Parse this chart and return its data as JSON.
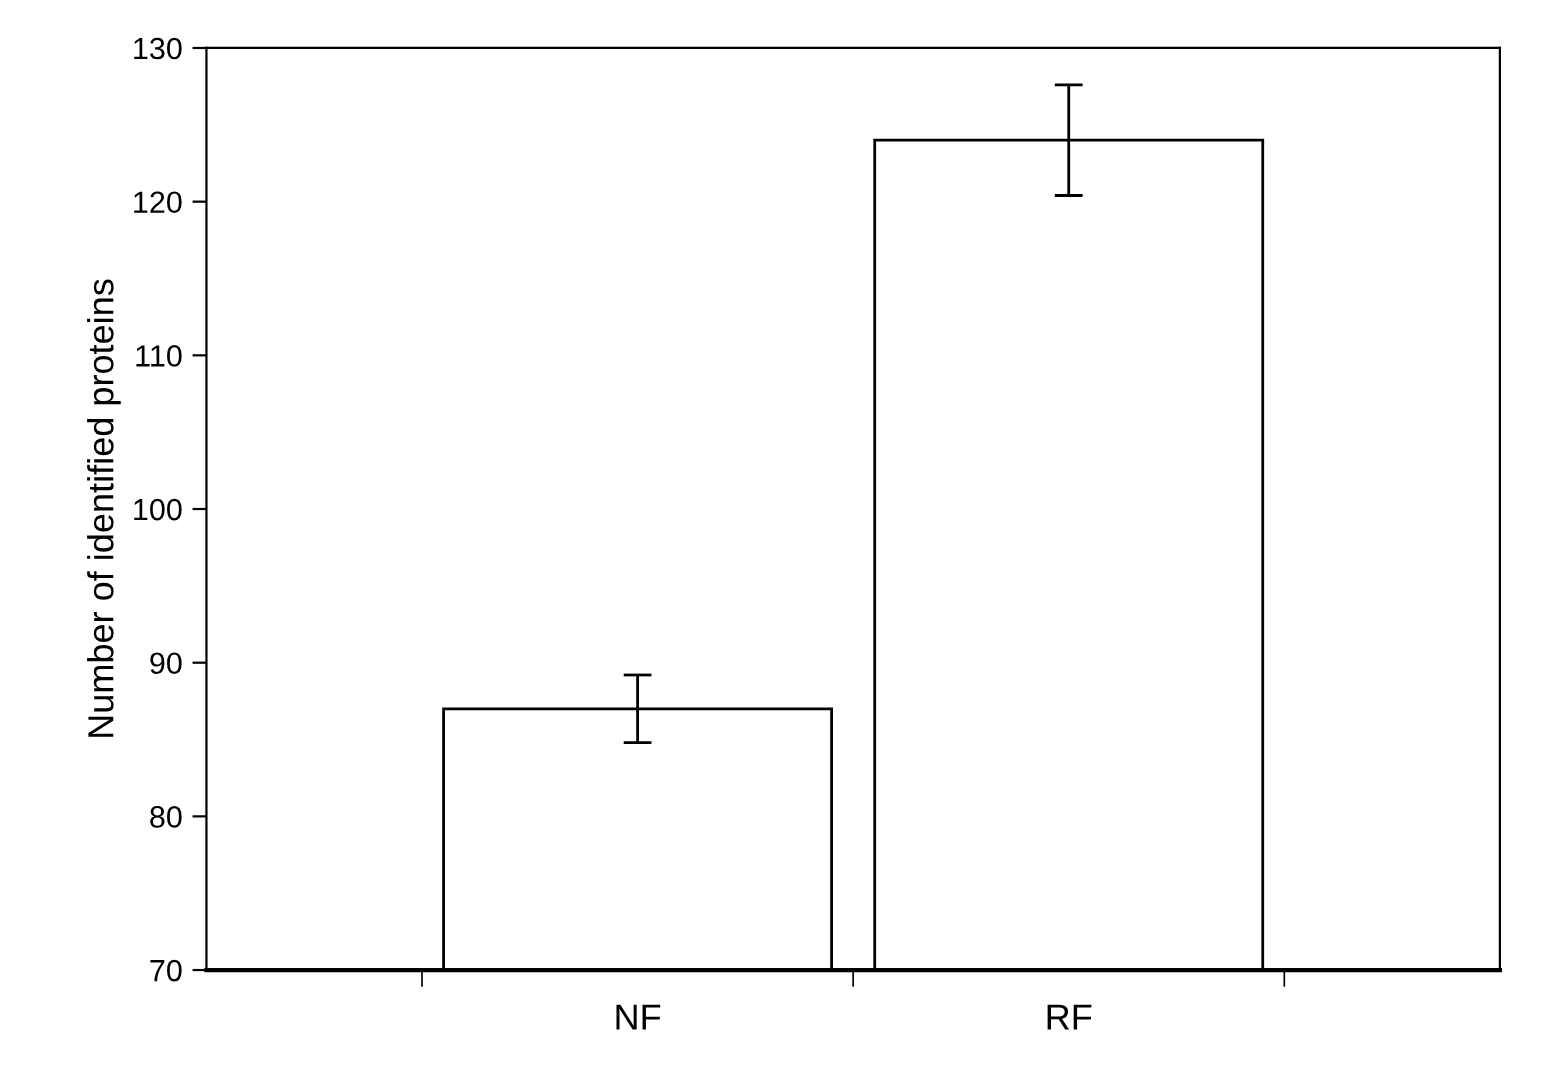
{
  "chart_data": {
    "type": "bar",
    "ylabel": "Number of identified proteins",
    "categories": [
      "NF",
      "RF"
    ],
    "values": [
      87,
      124
    ],
    "errors": [
      2.2,
      3.6
    ],
    "color": "#ffffff",
    "ylim": [
      70,
      130
    ],
    "yticks": [
      70,
      80,
      90,
      100,
      110,
      120,
      130
    ],
    "grid": false,
    "legend": false
  }
}
